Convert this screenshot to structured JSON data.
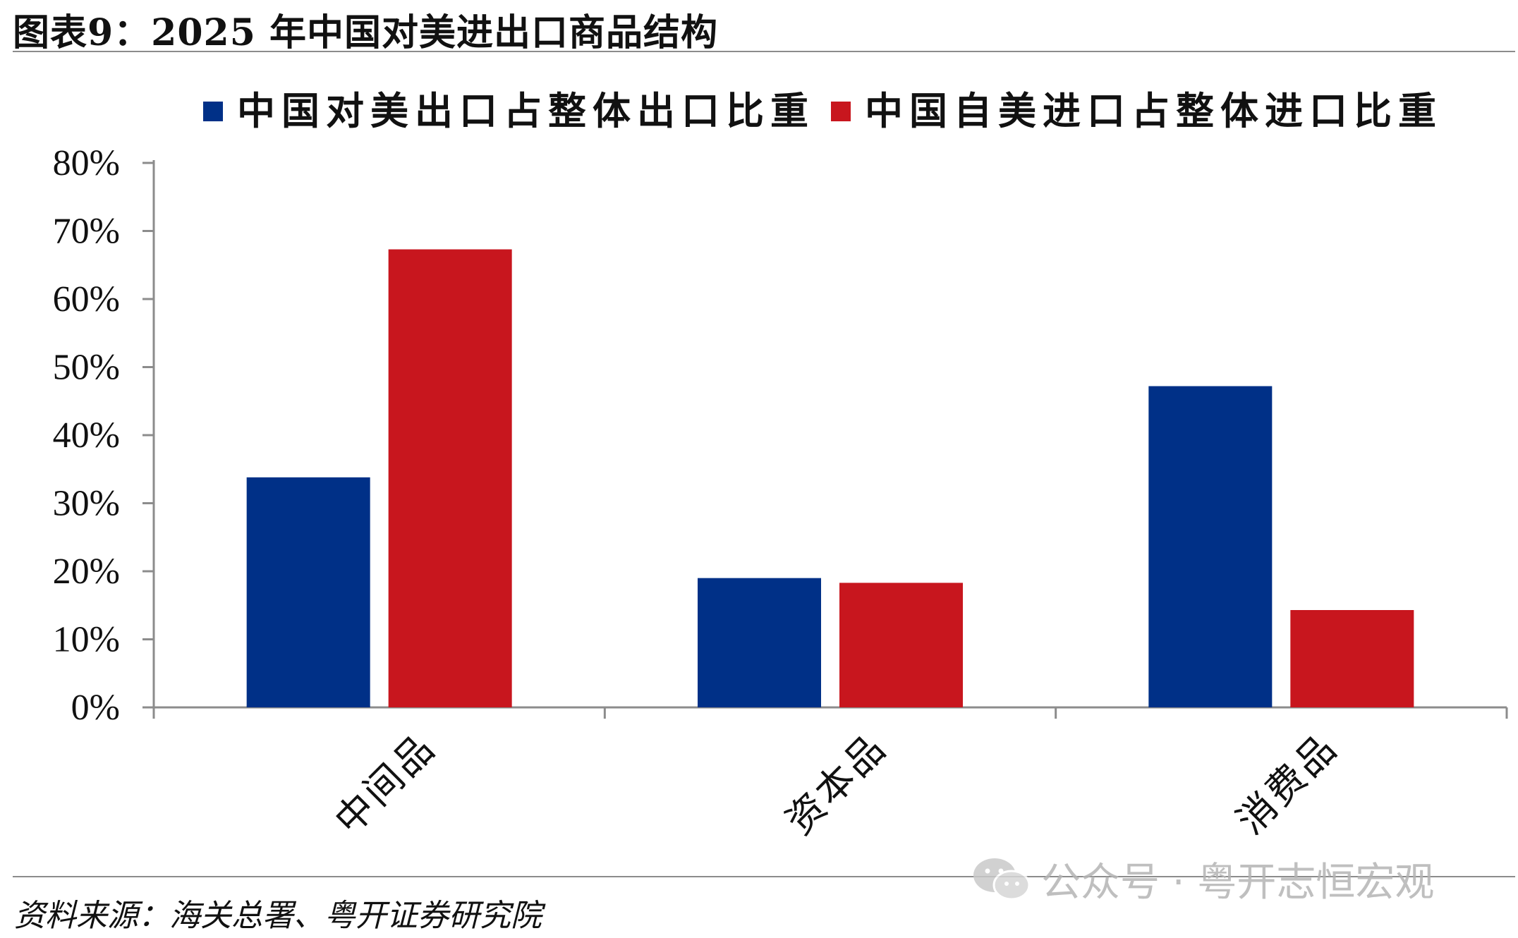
{
  "title": "图表9：2025 年中国对美进出口商品结构",
  "source": "资料来源：海关总署、粤开证券研究院",
  "watermark": "公众号 · 粤开志恒宏观",
  "colors": {
    "export": "#003087",
    "import": "#c8161e",
    "axis": "#8c8c8c",
    "text": "#111111"
  },
  "chart_data": {
    "type": "bar",
    "categories": [
      "中间品",
      "资本品",
      "消费品"
    ],
    "series": [
      {
        "name": "中国对美出口占整体出口比重",
        "color": "#003087",
        "values": [
          33.8,
          19.0,
          47.2
        ]
      },
      {
        "name": "中国自美进口占整体进口比重",
        "color": "#c8161e",
        "values": [
          67.3,
          18.3,
          14.3
        ]
      }
    ],
    "ylim": [
      0,
      80
    ],
    "yticks": [
      "0%",
      "10%",
      "20%",
      "30%",
      "40%",
      "50%",
      "60%",
      "70%",
      "80%"
    ],
    "ylabel": "",
    "xlabel": "",
    "legend_position": "top",
    "grid": false
  }
}
